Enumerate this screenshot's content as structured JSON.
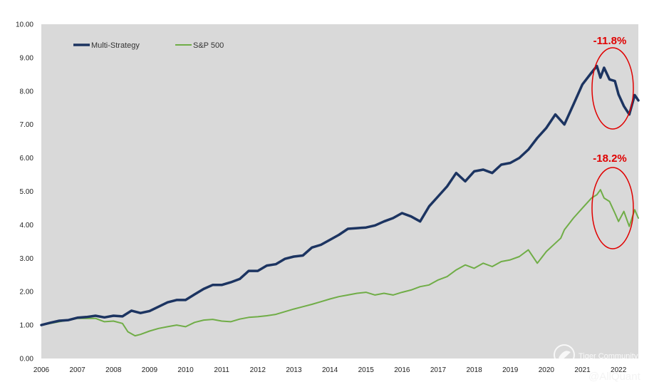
{
  "chart_data": {
    "type": "line",
    "title": "",
    "xlabel": "",
    "ylabel": "",
    "xlim": [
      2006,
      2022.55
    ],
    "ylim": [
      0,
      10
    ],
    "grid": false,
    "legend_position": "top-left",
    "x_ticks": [
      "2006",
      "2007",
      "2008",
      "2009",
      "2010",
      "2011",
      "2012",
      "2013",
      "2014",
      "2015",
      "2016",
      "2017",
      "2018",
      "2019",
      "2020",
      "2021",
      "2022"
    ],
    "y_ticks": [
      "0.00",
      "1.00",
      "2.00",
      "3.00",
      "4.00",
      "5.00",
      "6.00",
      "7.00",
      "8.00",
      "9.00",
      "10.00"
    ],
    "colors": {
      "plot_background": "#d9d9d9",
      "multi_strategy": "#1c3461",
      "sp500": "#70ad47",
      "callout": "#e00000"
    },
    "series": [
      {
        "name": "Multi-Strategy",
        "x": [
          2006.0,
          2006.25,
          2006.5,
          2006.75,
          2007.0,
          2007.25,
          2007.5,
          2007.75,
          2008.0,
          2008.25,
          2008.5,
          2008.75,
          2009.0,
          2009.25,
          2009.5,
          2009.75,
          2010.0,
          2010.25,
          2010.5,
          2010.75,
          2011.0,
          2011.25,
          2011.5,
          2011.75,
          2012.0,
          2012.25,
          2012.5,
          2012.75,
          2013.0,
          2013.25,
          2013.5,
          2013.75,
          2014.0,
          2014.25,
          2014.5,
          2014.75,
          2015.0,
          2015.25,
          2015.5,
          2015.75,
          2016.0,
          2016.25,
          2016.5,
          2016.75,
          2017.0,
          2017.25,
          2017.5,
          2017.75,
          2018.0,
          2018.25,
          2018.5,
          2018.75,
          2019.0,
          2019.25,
          2019.5,
          2019.75,
          2020.0,
          2020.25,
          2020.5,
          2020.75,
          2021.0,
          2021.25,
          2021.4,
          2021.5,
          2021.6,
          2021.75,
          2021.9,
          2022.0,
          2022.15,
          2022.3,
          2022.45,
          2022.55
        ],
        "values": [
          1.0,
          1.07,
          1.13,
          1.15,
          1.22,
          1.24,
          1.28,
          1.23,
          1.28,
          1.26,
          1.43,
          1.36,
          1.42,
          1.55,
          1.68,
          1.75,
          1.75,
          1.92,
          2.08,
          2.2,
          2.2,
          2.28,
          2.38,
          2.62,
          2.62,
          2.78,
          2.82,
          2.98,
          3.05,
          3.08,
          3.32,
          3.4,
          3.55,
          3.7,
          3.88,
          3.9,
          3.92,
          3.98,
          4.1,
          4.2,
          4.35,
          4.25,
          4.1,
          4.55,
          4.85,
          5.15,
          5.55,
          5.3,
          5.6,
          5.65,
          5.55,
          5.8,
          5.85,
          6.0,
          6.25,
          6.6,
          6.9,
          7.3,
          7.0,
          7.6,
          8.2,
          8.55,
          8.75,
          8.4,
          8.7,
          8.35,
          8.3,
          7.9,
          7.55,
          7.3,
          7.88,
          7.72
        ]
      },
      {
        "name": "S&P 500",
        "x": [
          2006.0,
          2006.25,
          2006.5,
          2006.75,
          2007.0,
          2007.25,
          2007.5,
          2007.75,
          2008.0,
          2008.25,
          2008.4,
          2008.6,
          2008.75,
          2009.0,
          2009.25,
          2009.5,
          2009.75,
          2010.0,
          2010.25,
          2010.5,
          2010.75,
          2011.0,
          2011.25,
          2011.5,
          2011.75,
          2012.0,
          2012.25,
          2012.5,
          2012.75,
          2013.0,
          2013.25,
          2013.5,
          2013.75,
          2014.0,
          2014.25,
          2014.5,
          2014.75,
          2015.0,
          2015.25,
          2015.5,
          2015.75,
          2016.0,
          2016.25,
          2016.5,
          2016.75,
          2017.0,
          2017.25,
          2017.5,
          2017.75,
          2018.0,
          2018.25,
          2018.5,
          2018.75,
          2019.0,
          2019.25,
          2019.5,
          2019.75,
          2020.0,
          2020.25,
          2020.4,
          2020.5,
          2020.75,
          2021.0,
          2021.25,
          2021.4,
          2021.5,
          2021.6,
          2021.75,
          2021.9,
          2022.0,
          2022.15,
          2022.3,
          2022.45,
          2022.55
        ],
        "values": [
          1.0,
          1.05,
          1.1,
          1.15,
          1.2,
          1.2,
          1.2,
          1.1,
          1.12,
          1.05,
          0.8,
          0.68,
          0.72,
          0.82,
          0.9,
          0.95,
          1.0,
          0.95,
          1.08,
          1.15,
          1.17,
          1.12,
          1.1,
          1.18,
          1.23,
          1.25,
          1.28,
          1.32,
          1.4,
          1.48,
          1.55,
          1.62,
          1.7,
          1.78,
          1.85,
          1.9,
          1.95,
          1.98,
          1.9,
          1.95,
          1.9,
          1.98,
          2.05,
          2.15,
          2.2,
          2.35,
          2.45,
          2.65,
          2.8,
          2.7,
          2.85,
          2.75,
          2.9,
          2.95,
          3.05,
          3.25,
          2.85,
          3.2,
          3.45,
          3.6,
          3.85,
          4.2,
          4.5,
          4.8,
          4.9,
          5.05,
          4.8,
          4.7,
          4.35,
          4.1,
          4.4,
          3.95,
          4.45,
          4.2
        ]
      }
    ],
    "annotations": [
      {
        "text": "-11.8%",
        "series": "Multi-Strategy"
      },
      {
        "text": "-18.2%",
        "series": "S&P 500"
      }
    ]
  },
  "legend": {
    "items": [
      "Multi-Strategy",
      "S&P 500"
    ]
  },
  "watermark": {
    "community": "Tiger Community",
    "handle": "@AllQuant"
  }
}
